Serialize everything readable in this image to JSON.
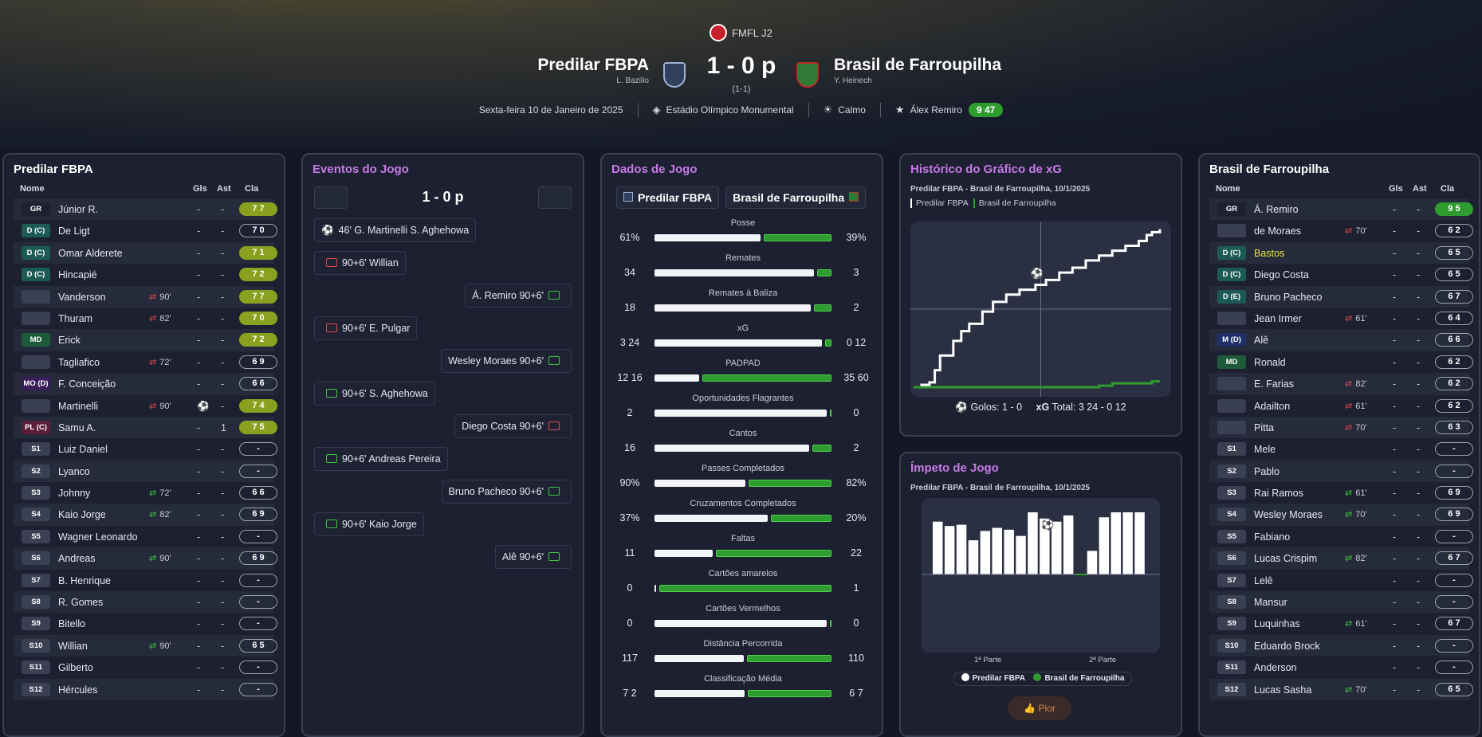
{
  "competition": {
    "name": "FMFL J2"
  },
  "match": {
    "home": "Predilar FBPA",
    "home_manager": "L. Bazilio",
    "away": "Brasil de Farroupilha",
    "away_manager": "Y. Heinech",
    "score": "1 - 0 p",
    "aggregate": "(1-1)",
    "date": "Sexta-feira 10 de Janeiro de 2025",
    "stadium": "Estádio Olímpico Monumental",
    "weather": "Calmo",
    "pom_name": "Álex Remiro",
    "pom_rating": "9 47"
  },
  "columns": {
    "name": "Nome",
    "gls": "Gls",
    "ast": "Ast",
    "cla": "Cla"
  },
  "home": {
    "title": "Predilar FBPA",
    "rows": [
      {
        "pos": "GR",
        "cls": "gr",
        "name": "Júnior R.",
        "sub": "",
        "g": "-",
        "a": "-",
        "r": "7 7",
        "rc": "yg"
      },
      {
        "pos": "D (C)",
        "cls": "dc",
        "name": "De Ligt",
        "sub": "",
        "g": "-",
        "a": "-",
        "r": "7 0",
        "rc": ""
      },
      {
        "pos": "D (C)",
        "cls": "dc",
        "name": "Omar Alderete",
        "sub": "",
        "g": "-",
        "a": "-",
        "r": "7 1",
        "rc": "yg"
      },
      {
        "pos": "D (C)",
        "cls": "dc",
        "name": "Hincapié",
        "sub": "",
        "g": "-",
        "a": "-",
        "r": "7 2",
        "rc": "yg"
      },
      {
        "pos": "",
        "cls": "e",
        "name": "Vanderson",
        "sub": "90'",
        "sd": "out",
        "g": "-",
        "a": "-",
        "r": "7 7",
        "rc": "yg"
      },
      {
        "pos": "",
        "cls": "e",
        "name": "Thuram",
        "sub": "82'",
        "sd": "out",
        "g": "-",
        "a": "-",
        "r": "7 0",
        "rc": "yg"
      },
      {
        "pos": "MD",
        "cls": "md",
        "name": "Erick",
        "sub": "",
        "g": "-",
        "a": "-",
        "r": "7 2",
        "rc": "yg"
      },
      {
        "pos": "",
        "cls": "e",
        "name": "Tagliafico",
        "sub": "72'",
        "sd": "out",
        "g": "-",
        "a": "-",
        "r": "6 9",
        "rc": ""
      },
      {
        "pos": "MO (D)",
        "cls": "mo",
        "name": "F. Conceição",
        "sub": "",
        "g": "-",
        "a": "-",
        "r": "6 6",
        "rc": ""
      },
      {
        "pos": "",
        "cls": "e",
        "name": "Martinelli",
        "sub": "90'",
        "sd": "out",
        "g": "⚽",
        "a": "-",
        "r": "7 4",
        "rc": "yg"
      },
      {
        "pos": "PL (C)",
        "cls": "pl",
        "name": "Samu A.",
        "sub": "",
        "g": "-",
        "a": "1",
        "r": "7 5",
        "rc": "yg"
      },
      {
        "pos": "S1",
        "cls": "s",
        "name": "Luiz Daniel",
        "sub": "",
        "g": "-",
        "a": "-",
        "r": "-",
        "rc": ""
      },
      {
        "pos": "S2",
        "cls": "s",
        "name": "Lyanco",
        "sub": "",
        "g": "-",
        "a": "-",
        "r": "-",
        "rc": ""
      },
      {
        "pos": "S3",
        "cls": "s",
        "name": "Johnny",
        "sub": "72'",
        "sd": "in",
        "g": "-",
        "a": "-",
        "r": "6 6",
        "rc": ""
      },
      {
        "pos": "S4",
        "cls": "s",
        "name": "Kaio Jorge",
        "sub": "82'",
        "sd": "in",
        "g": "-",
        "a": "-",
        "r": "6 9",
        "rc": ""
      },
      {
        "pos": "S5",
        "cls": "s",
        "name": "Wagner Leonardo",
        "sub": "",
        "g": "-",
        "a": "-",
        "r": "-",
        "rc": ""
      },
      {
        "pos": "S6",
        "cls": "s",
        "name": "Andreas",
        "sub": "90'",
        "sd": "in",
        "g": "-",
        "a": "-",
        "r": "6 9",
        "rc": ""
      },
      {
        "pos": "S7",
        "cls": "s",
        "name": "B. Henrique",
        "sub": "",
        "g": "-",
        "a": "-",
        "r": "-",
        "rc": ""
      },
      {
        "pos": "S8",
        "cls": "s",
        "name": "R. Gomes",
        "sub": "",
        "g": "-",
        "a": "-",
        "r": "-",
        "rc": ""
      },
      {
        "pos": "S9",
        "cls": "s",
        "name": "Bitello",
        "sub": "",
        "g": "-",
        "a": "-",
        "r": "-",
        "rc": ""
      },
      {
        "pos": "S10",
        "cls": "s",
        "name": "Willian",
        "sub": "90'",
        "sd": "in",
        "g": "-",
        "a": "-",
        "r": "6 5",
        "rc": ""
      },
      {
        "pos": "S11",
        "cls": "s",
        "name": "Gilberto",
        "sub": "",
        "g": "-",
        "a": "-",
        "r": "-",
        "rc": ""
      },
      {
        "pos": "S12",
        "cls": "s",
        "name": "Hércules",
        "sub": "",
        "g": "-",
        "a": "-",
        "r": "-",
        "rc": ""
      }
    ]
  },
  "away": {
    "title": "Brasil de Farroupilha",
    "rows": [
      {
        "pos": "GR",
        "cls": "gr",
        "name": "Á. Remiro",
        "sub": "",
        "g": "-",
        "a": "-",
        "r": "9 5",
        "rc": "gg"
      },
      {
        "pos": "",
        "cls": "e",
        "name": "de Moraes",
        "sub": "70'",
        "sd": "out",
        "g": "-",
        "a": "-",
        "r": "6 2",
        "rc": ""
      },
      {
        "pos": "D (C)",
        "cls": "dc",
        "name": "Bastos",
        "y": true,
        "sub": "",
        "g": "-",
        "a": "-",
        "r": "6 5",
        "rc": ""
      },
      {
        "pos": "D (C)",
        "cls": "dc",
        "name": "Diego Costa",
        "sub": "",
        "g": "-",
        "a": "-",
        "r": "6 5",
        "rc": ""
      },
      {
        "pos": "D (E)",
        "cls": "dc",
        "name": "Bruno Pacheco",
        "sub": "",
        "g": "-",
        "a": "-",
        "r": "6 7",
        "rc": ""
      },
      {
        "pos": "",
        "cls": "e",
        "name": "Jean Irmer",
        "sub": "61'",
        "sd": "out",
        "g": "-",
        "a": "-",
        "r": "6 4",
        "rc": ""
      },
      {
        "pos": "M (D)",
        "cls": "mdd",
        "name": "Alê",
        "sub": "",
        "g": "-",
        "a": "-",
        "r": "6 6",
        "rc": ""
      },
      {
        "pos": "MD",
        "cls": "md",
        "name": "Ronald",
        "sub": "",
        "g": "-",
        "a": "-",
        "r": "6 2",
        "rc": ""
      },
      {
        "pos": "",
        "cls": "e",
        "name": "E. Farias",
        "sub": "82'",
        "sd": "out",
        "g": "-",
        "a": "-",
        "r": "6 2",
        "rc": ""
      },
      {
        "pos": "",
        "cls": "e",
        "name": "Adailton",
        "sub": "61'",
        "sd": "out",
        "g": "-",
        "a": "-",
        "r": "6 2",
        "rc": ""
      },
      {
        "pos": "",
        "cls": "e",
        "name": "Pitta",
        "sub": "70'",
        "sd": "out",
        "g": "-",
        "a": "-",
        "r": "6 3",
        "rc": ""
      },
      {
        "pos": "S1",
        "cls": "s",
        "name": "Mele",
        "sub": "",
        "g": "-",
        "a": "-",
        "r": "-",
        "rc": ""
      },
      {
        "pos": "S2",
        "cls": "s",
        "name": "Pablo",
        "sub": "",
        "g": "-",
        "a": "-",
        "r": "-",
        "rc": ""
      },
      {
        "pos": "S3",
        "cls": "s",
        "name": "Rai Ramos",
        "sub": "61'",
        "sd": "in",
        "g": "-",
        "a": "-",
        "r": "6 9",
        "rc": ""
      },
      {
        "pos": "S4",
        "cls": "s",
        "name": "Wesley Moraes",
        "sub": "70'",
        "sd": "in",
        "g": "-",
        "a": "-",
        "r": "6 9",
        "rc": ""
      },
      {
        "pos": "S5",
        "cls": "s",
        "name": "Fabiano",
        "sub": "",
        "g": "-",
        "a": "-",
        "r": "-",
        "rc": ""
      },
      {
        "pos": "S6",
        "cls": "s",
        "name": "Lucas Crispim",
        "sub": "82'",
        "sd": "in",
        "g": "-",
        "a": "-",
        "r": "6 7",
        "rc": ""
      },
      {
        "pos": "S7",
        "cls": "s",
        "name": "Lelê",
        "sub": "",
        "g": "-",
        "a": "-",
        "r": "-",
        "rc": ""
      },
      {
        "pos": "S8",
        "cls": "s",
        "name": "Mansur",
        "sub": "",
        "g": "-",
        "a": "-",
        "r": "-",
        "rc": ""
      },
      {
        "pos": "S9",
        "cls": "s",
        "name": "Luquinhas",
        "sub": "61'",
        "sd": "in",
        "g": "-",
        "a": "-",
        "r": "6 7",
        "rc": ""
      },
      {
        "pos": "S10",
        "cls": "s",
        "name": "Eduardo Brock",
        "sub": "",
        "g": "-",
        "a": "-",
        "r": "-",
        "rc": ""
      },
      {
        "pos": "S11",
        "cls": "s",
        "name": "Anderson",
        "sub": "",
        "g": "-",
        "a": "-",
        "r": "-",
        "rc": ""
      },
      {
        "pos": "S12",
        "cls": "s",
        "name": "Lucas Sasha",
        "sub": "70'",
        "sd": "in",
        "g": "-",
        "a": "-",
        "r": "6 5",
        "rc": ""
      }
    ]
  },
  "events": {
    "title": "Eventos do Jogo",
    "score": "1 - 0 p",
    "items": [
      {
        "side": "home",
        "type": "goal",
        "text": "46'  G. Martinelli  S. Aghehowa"
      },
      {
        "side": "home",
        "type": "penmiss",
        "text": "90+6'  Willian"
      },
      {
        "side": "away",
        "type": "penscore",
        "text": "Á. Remiro  90+6'"
      },
      {
        "side": "home",
        "type": "penmiss",
        "text": "90+6'  E. Pulgar"
      },
      {
        "side": "away",
        "type": "penscore",
        "text": "Wesley Moraes  90+6'"
      },
      {
        "side": "home",
        "type": "penscore",
        "text": "90+6'  S. Aghehowa"
      },
      {
        "side": "away",
        "type": "penmiss",
        "text": "Diego Costa  90+6'"
      },
      {
        "side": "home",
        "type": "penscore",
        "text": "90+6'  Andreas Pereira"
      },
      {
        "side": "away",
        "type": "penscore",
        "text": "Bruno Pacheco  90+6'"
      },
      {
        "side": "home",
        "type": "penscore",
        "text": "90+6'  Kaio Jorge"
      },
      {
        "side": "away",
        "type": "penscore",
        "text": "Alê  90+6'"
      }
    ]
  },
  "stats": {
    "title": "Dados de Jogo",
    "home": "Predilar FBPA",
    "away": "Brasil de Farroupilha",
    "items": [
      {
        "label": "Posse",
        "l": "61%",
        "r": "39%",
        "lv": 61,
        "rv": 39
      },
      {
        "label": "Remates",
        "l": "34",
        "r": "3",
        "lv": 34,
        "rv": 3
      },
      {
        "label": "Remates à Baliza",
        "l": "18",
        "r": "2",
        "lv": 18,
        "rv": 2
      },
      {
        "label": "xG",
        "l": "3 24",
        "r": "0 12",
        "lv": 3.24,
        "rv": 0.12
      },
      {
        "label": "PADPAD",
        "l": "12 16",
        "r": "35 60",
        "lv": 12.16,
        "rv": 35.6
      },
      {
        "label": "Oportunidades Flagrantes",
        "l": "2",
        "r": "0",
        "lv": 2,
        "rv": 0
      },
      {
        "label": "Cantos",
        "l": "16",
        "r": "2",
        "lv": 16,
        "rv": 2
      },
      {
        "label": "Passes Completados",
        "l": "90%",
        "r": "82%",
        "lv": 90,
        "rv": 82
      },
      {
        "label": "Cruzamentos Completados",
        "l": "37%",
        "r": "20%",
        "lv": 37,
        "rv": 20
      },
      {
        "label": "Faltas",
        "l": "11",
        "r": "22",
        "lv": 11,
        "rv": 22
      },
      {
        "label": "Cartões amarelos",
        "l": "0",
        "r": "1",
        "lv": 0,
        "rv": 1
      },
      {
        "label": "Cartões Vermelhos",
        "l": "0",
        "r": "0",
        "lv": 0,
        "rv": 0
      },
      {
        "label": "Distância Percorrida",
        "l": "117",
        "r": "110",
        "lv": 117,
        "rv": 110
      },
      {
        "label": "Classificação Média",
        "l": "7 2",
        "r": "6 7",
        "lv": 7.2,
        "rv": 6.7
      }
    ]
  },
  "xg": {
    "title": "Histórico do Gráfico de xG",
    "subtitle": "Predilar FBPA - Brasil de Farroupilha, 10/1/2025",
    "legend_home": "Predilar FBPA",
    "legend_away": "Brasil de Farroupilha",
    "goals": "Golos: 1 - 0",
    "xg_label": "xG",
    "total": "Total:  3 24  -  0 12"
  },
  "momentum": {
    "title": "Ímpeto de Jogo",
    "subtitle": "Predilar FBPA - Brasil de Farroupilha, 10/1/2025",
    "first": "1ª Parte",
    "second": "2ª Parte",
    "legend_home": "Predilar FBPA",
    "legend_away": "Brasil de Farroupilha",
    "button": "Pior"
  },
  "chart_data": [
    {
      "type": "line",
      "title": "Histórico do Gráfico de xG",
      "series": [
        {
          "name": "Predilar FBPA",
          "x": [
            0,
            3,
            6,
            8,
            10,
            15,
            18,
            21,
            26,
            30,
            35,
            40,
            46,
            50,
            55,
            60,
            65,
            70,
            75,
            80,
            85,
            88,
            90,
            93
          ],
          "y": [
            0,
            0.05,
            0.1,
            0.35,
            0.65,
            0.95,
            1.15,
            1.3,
            1.55,
            1.75,
            1.9,
            2.0,
            2.1,
            2.2,
            2.35,
            2.45,
            2.6,
            2.7,
            2.8,
            2.9,
            3.0,
            3.12,
            3.18,
            3.24
          ]
        },
        {
          "name": "Brasil de Farroupilha",
          "x": [
            0,
            70,
            75,
            90,
            93
          ],
          "y": [
            0,
            0.03,
            0.08,
            0.12,
            0.12
          ]
        }
      ],
      "goals": [
        {
          "team": "Predilar FBPA",
          "minute": 46
        }
      ]
    },
    {
      "type": "bar",
      "title": "Ímpeto de Jogo",
      "categories": [
        "1",
        "2",
        "3",
        "4",
        "5",
        "6",
        "7",
        "8",
        "9",
        "10",
        "11",
        "12",
        "13",
        "14",
        "15",
        "16",
        "17",
        "18"
      ],
      "values": [
        0.85,
        0.78,
        0.8,
        0.55,
        0.7,
        0.75,
        0.72,
        0.62,
        1.0,
        0.9,
        0.85,
        0.95,
        0,
        0.38,
        0.92,
        1.0,
        1.0,
        1.0
      ],
      "halves": [
        "1ª Parte",
        "2ª Parte"
      ]
    }
  ]
}
